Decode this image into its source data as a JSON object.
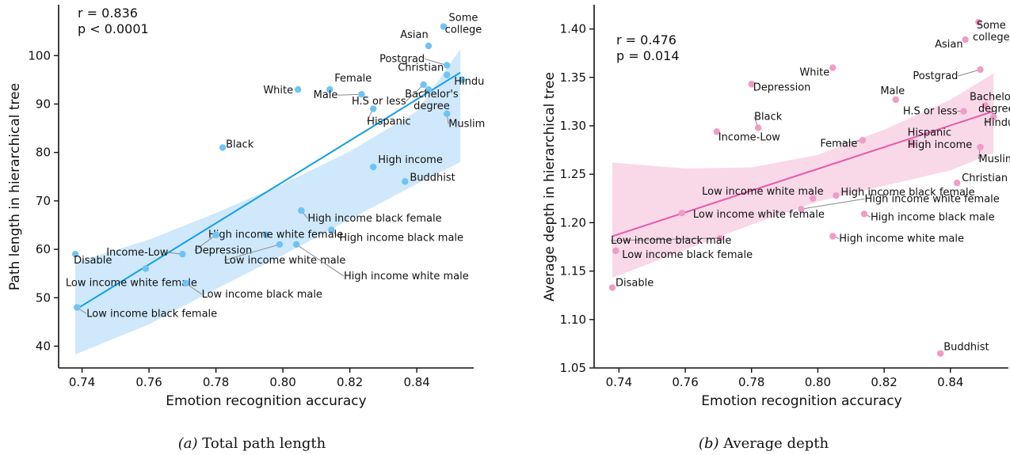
{
  "chart_data": [
    {
      "type": "scatter",
      "caption_prefix": "(a)",
      "caption_text": "Total path length",
      "xlabel": "Emotion recognition accuracy",
      "ylabel": "Path length in hierarchical tree",
      "stats": [
        "r = 0.836",
        "p  <  0.0001"
      ],
      "xlim": [
        0.733,
        0.857
      ],
      "ylim": [
        35.5,
        110.5
      ],
      "xticks": [
        "0.74",
        "0.76",
        "0.78",
        "0.80",
        "0.82",
        "0.84"
      ],
      "yticks": [
        "40",
        "50",
        "60",
        "70",
        "80",
        "90",
        "100"
      ],
      "grid": false,
      "regression": {
        "x": [
          0.738,
          0.853
        ],
        "y": [
          47.5,
          96.5
        ]
      },
      "band_lower": [
        {
          "x": 0.738,
          "y": 38.3
        },
        {
          "x": 0.76,
          "y": 44.5
        },
        {
          "x": 0.78,
          "y": 51.8
        },
        {
          "x": 0.8,
          "y": 58.8
        },
        {
          "x": 0.82,
          "y": 66.2
        },
        {
          "x": 0.84,
          "y": 73.5
        },
        {
          "x": 0.853,
          "y": 78.0
        }
      ],
      "band_upper": [
        {
          "x": 0.738,
          "y": 57.3
        },
        {
          "x": 0.76,
          "y": 62.0
        },
        {
          "x": 0.78,
          "y": 67.5
        },
        {
          "x": 0.8,
          "y": 73.5
        },
        {
          "x": 0.82,
          "y": 80.2
        },
        {
          "x": 0.84,
          "y": 88.5
        },
        {
          "x": 0.853,
          "y": 101.3
        }
      ],
      "colors": {
        "point": "#6fc3f4",
        "line": "#139ee8",
        "band": "#cfe8fb"
      },
      "points": [
        {
          "label": "Asian",
          "x": 0.8435,
          "y": 102.0
        },
        {
          "label": "Some college",
          "x": 0.848,
          "y": 106.0
        },
        {
          "label": "Postgrad",
          "x": 0.849,
          "y": 98.0
        },
        {
          "label": "Christian",
          "x": 0.849,
          "y": 96.0
        },
        {
          "label": "Hindu",
          "x": 0.8535,
          "y": 95.0
        },
        {
          "label": "Bachelor's degree",
          "x": 0.8435,
          "y": 93.0
        },
        {
          "label": "Muslim",
          "x": 0.849,
          "y": 88.0
        },
        {
          "label": "Female",
          "x": 0.814,
          "y": 93.0
        },
        {
          "label": "White",
          "x": 0.8045,
          "y": 93.0
        },
        {
          "label": "Male",
          "x": 0.8235,
          "y": 92.0
        },
        {
          "label": "H.S or less",
          "x": 0.842,
          "y": 94.0
        },
        {
          "label": "Hispanic",
          "x": 0.827,
          "y": 89.0
        },
        {
          "label": "Black",
          "x": 0.782,
          "y": 81.0
        },
        {
          "label": "High income",
          "x": 0.827,
          "y": 77.0
        },
        {
          "label": "Buddhist",
          "x": 0.8365,
          "y": 74.0
        },
        {
          "label": "High income black female",
          "x": 0.8055,
          "y": 68.0
        },
        {
          "label": "High income black male",
          "x": 0.8145,
          "y": 64.0
        },
        {
          "label": "High income white female",
          "x": 0.795,
          "y": 63.0
        },
        {
          "label": "Depression",
          "x": 0.78,
          "y": 63.0
        },
        {
          "label": "Low income white male",
          "x": 0.799,
          "y": 61.0
        },
        {
          "label": "High income white male",
          "x": 0.804,
          "y": 61.0
        },
        {
          "label": "Disable",
          "x": 0.738,
          "y": 59.0
        },
        {
          "label": "Income-Low",
          "x": 0.77,
          "y": 59.0
        },
        {
          "label": "Low income white female",
          "x": 0.759,
          "y": 56.0
        },
        {
          "label": "Low income black male",
          "x": 0.771,
          "y": 53.0
        },
        {
          "label": "Low income black female",
          "x": 0.7385,
          "y": 48.0
        }
      ]
    },
    {
      "type": "scatter",
      "caption_prefix": "(b)",
      "caption_text": "Average depth",
      "xlabel": "Emotion recognition accuracy",
      "ylabel": "Average depth in hierarchical tree",
      "stats": [
        "r = 0.476",
        "p = 0.014"
      ],
      "xlim": [
        0.7325,
        0.8575
      ],
      "ylim": [
        1.05,
        1.425
      ],
      "xticks": [
        "0.74",
        "0.76",
        "0.78",
        "0.80",
        "0.82",
        "0.84"
      ],
      "yticks": [
        "1.05",
        "1.10",
        "1.15",
        "1.20",
        "1.25",
        "1.30",
        "1.35",
        "1.40"
      ],
      "grid": false,
      "regression": {
        "x": [
          0.738,
          0.853
        ],
        "y": [
          1.186,
          1.315
        ]
      },
      "band_lower": [
        {
          "x": 0.738,
          "y": 1.143
        },
        {
          "x": 0.76,
          "y": 1.172
        },
        {
          "x": 0.78,
          "y": 1.198
        },
        {
          "x": 0.8,
          "y": 1.222
        },
        {
          "x": 0.82,
          "y": 1.238
        },
        {
          "x": 0.84,
          "y": 1.254
        },
        {
          "x": 0.853,
          "y": 1.272
        }
      ],
      "band_upper": [
        {
          "x": 0.738,
          "y": 1.262
        },
        {
          "x": 0.76,
          "y": 1.256
        },
        {
          "x": 0.78,
          "y": 1.257
        },
        {
          "x": 0.8,
          "y": 1.27
        },
        {
          "x": 0.82,
          "y": 1.296
        },
        {
          "x": 0.84,
          "y": 1.327
        },
        {
          "x": 0.853,
          "y": 1.354
        }
      ],
      "colors": {
        "point": "#ef9cc6",
        "line": "#e55aa8",
        "band": "#f9d8e8"
      },
      "points": [
        {
          "label": "Some college",
          "x": 0.8485,
          "y": 1.407
        },
        {
          "label": "Asian",
          "x": 0.8445,
          "y": 1.389
        },
        {
          "label": "White",
          "x": 0.8045,
          "y": 1.36
        },
        {
          "label": "Postgrad",
          "x": 0.849,
          "y": 1.358
        },
        {
          "label": "Depression",
          "x": 0.78,
          "y": 1.343
        },
        {
          "label": "Male",
          "x": 0.8235,
          "y": 1.327
        },
        {
          "label": "Bachelor's degree",
          "x": 0.8505,
          "y": 1.321
        },
        {
          "label": "H.S or less",
          "x": 0.844,
          "y": 1.315
        },
        {
          "label": "Hindu",
          "x": 0.853,
          "y": 1.309
        },
        {
          "label": "Black",
          "x": 0.782,
          "y": 1.298
        },
        {
          "label": "Income-Low",
          "x": 0.7695,
          "y": 1.294
        },
        {
          "label": "Female",
          "x": 0.8135,
          "y": 1.285
        },
        {
          "label": "Hispanic",
          "x": 0.8285,
          "y": 1.281
        },
        {
          "label": "High income",
          "x": 0.8285,
          "y": 1.283
        },
        {
          "label": "Muslim",
          "x": 0.849,
          "y": 1.278
        },
        {
          "label": "Christian",
          "x": 0.842,
          "y": 1.241
        },
        {
          "label": "High income black female",
          "x": 0.8055,
          "y": 1.228
        },
        {
          "label": "Low income white male",
          "x": 0.7985,
          "y": 1.225
        },
        {
          "label": "High income white female",
          "x": 0.795,
          "y": 1.214
        },
        {
          "label": "Low income white female",
          "x": 0.759,
          "y": 1.21
        },
        {
          "label": "High income black male",
          "x": 0.814,
          "y": 1.209
        },
        {
          "label": "High income white male",
          "x": 0.8045,
          "y": 1.186
        },
        {
          "label": "Low income black male",
          "x": 0.7705,
          "y": 1.184
        },
        {
          "label": "Low income black female",
          "x": 0.739,
          "y": 1.171
        },
        {
          "label": "Disable",
          "x": 0.738,
          "y": 1.133
        },
        {
          "label": "Buddhist",
          "x": 0.837,
          "y": 1.065
        }
      ]
    }
  ]
}
